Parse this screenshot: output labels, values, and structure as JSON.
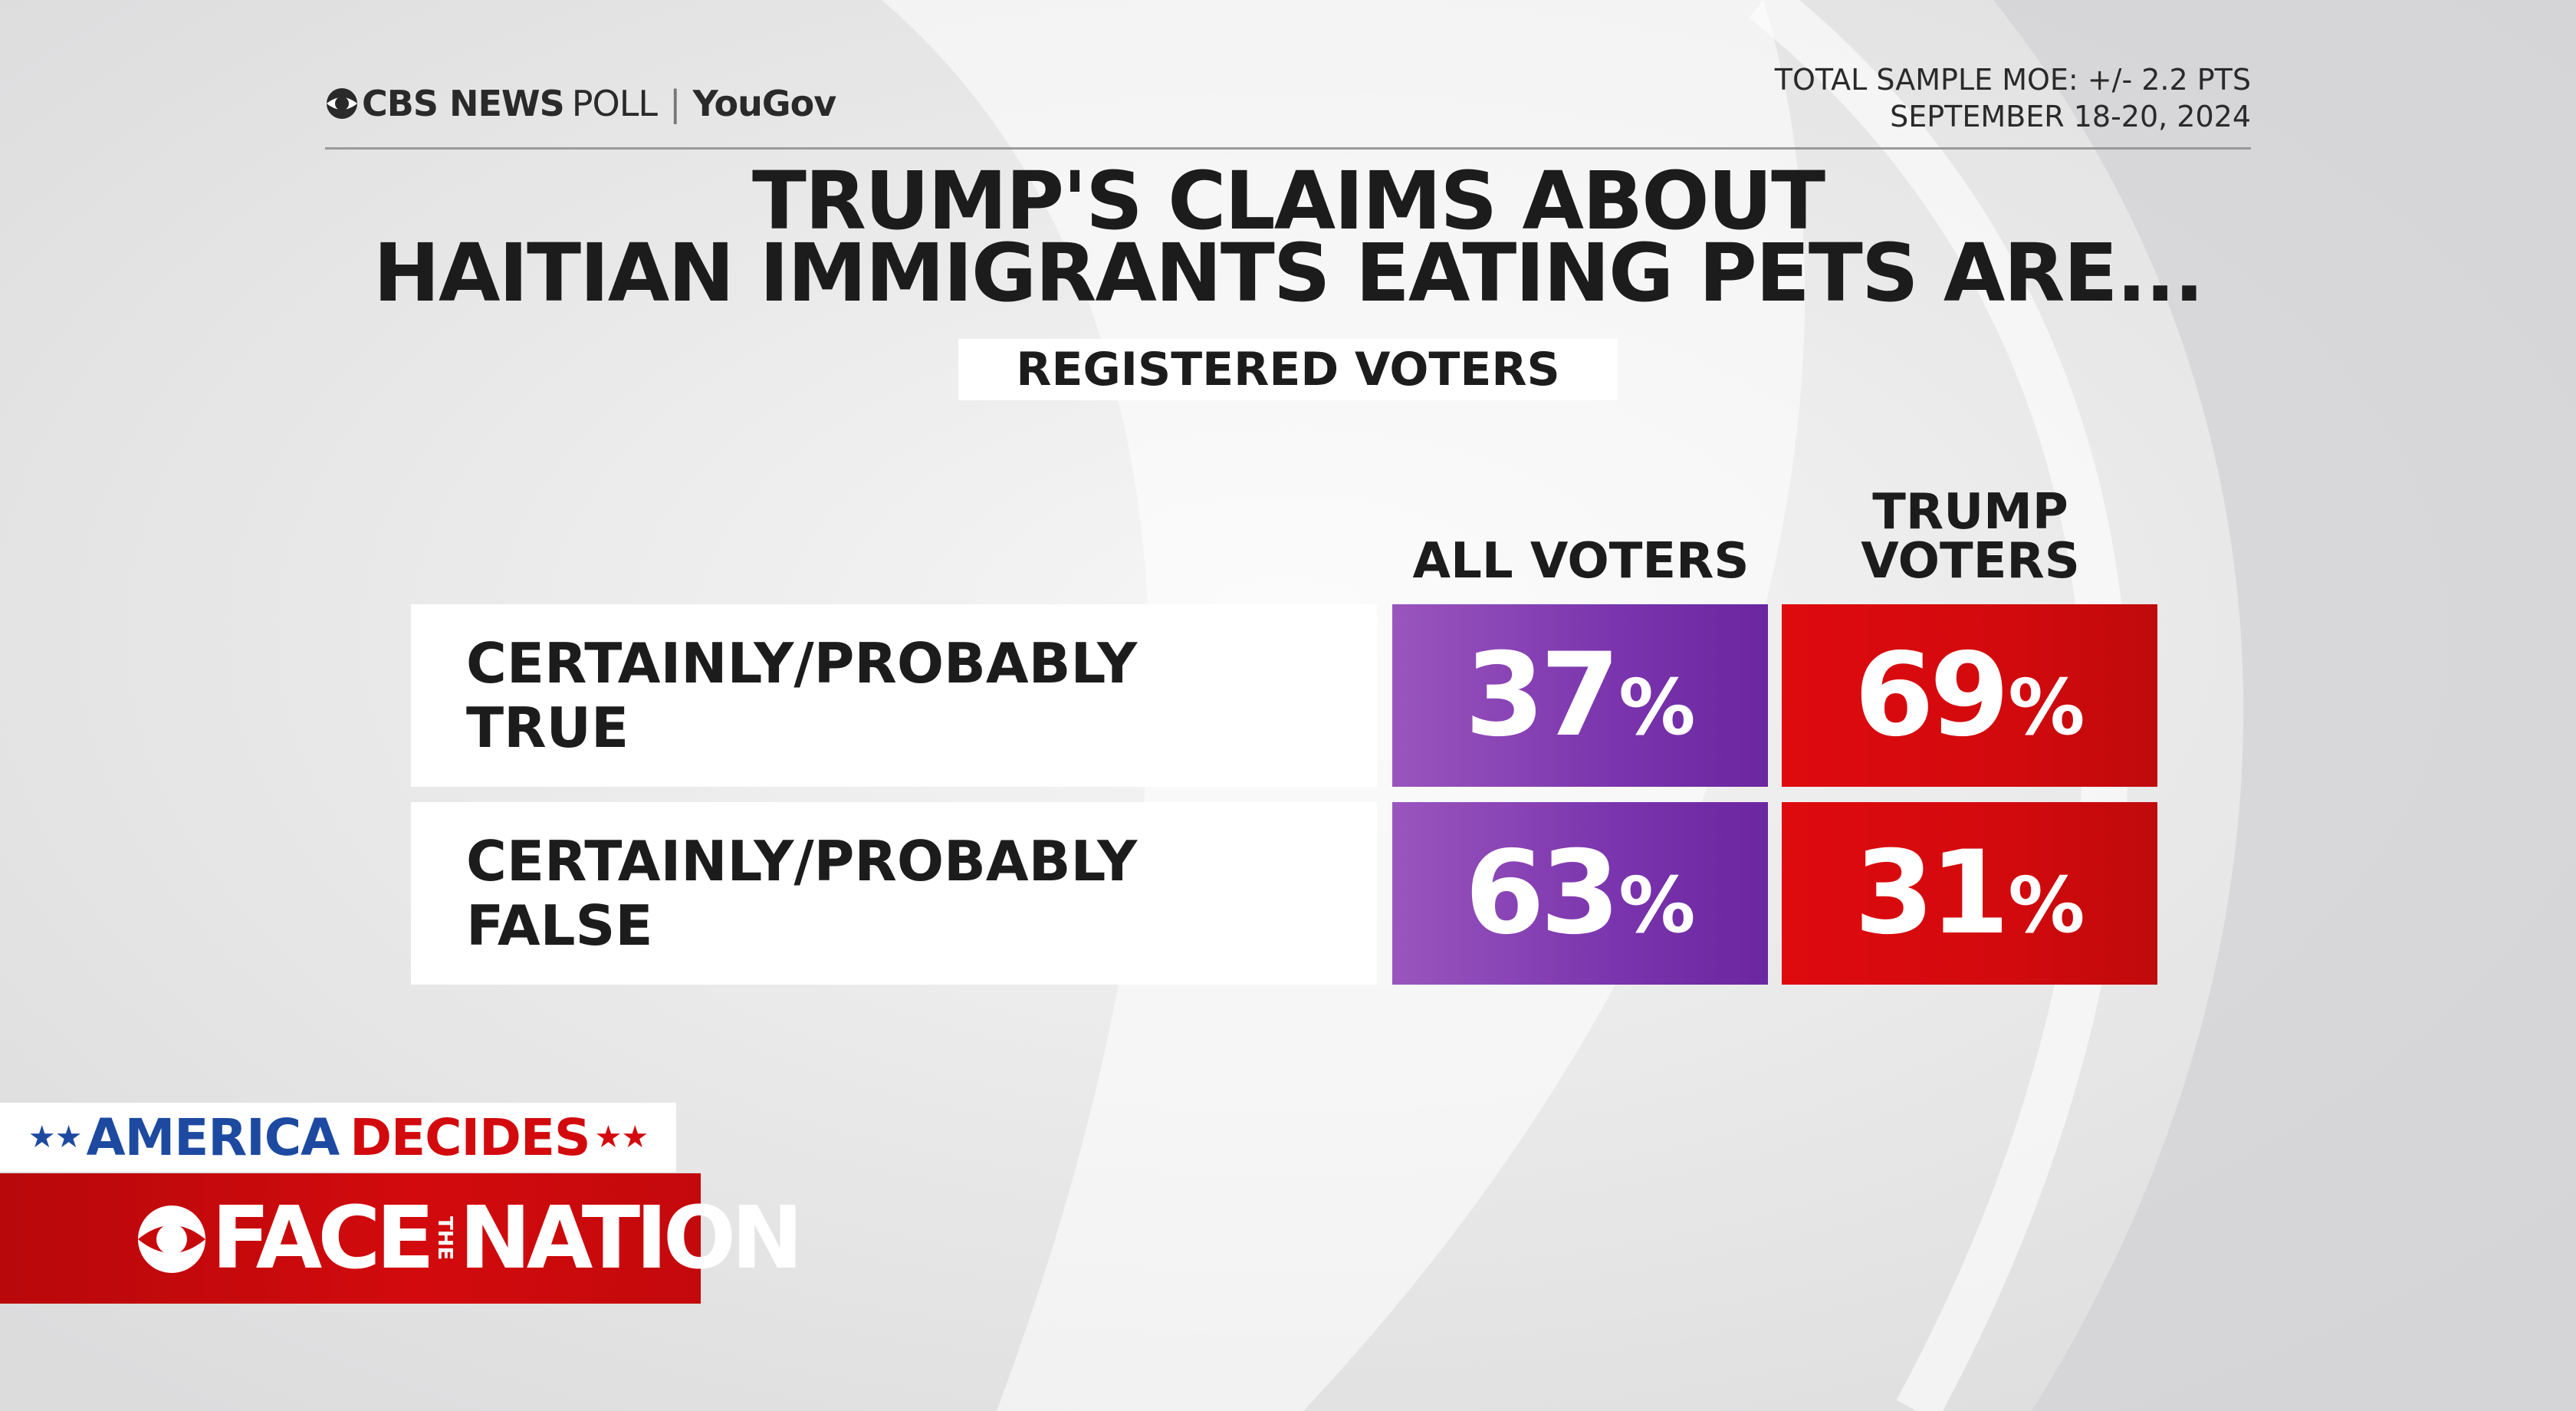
{
  "header": {
    "brand_news": "CBS NEWS",
    "brand_poll": "POLL",
    "brand_sep": "|",
    "brand_partner": "YouGov",
    "moe_line": "TOTAL SAMPLE MOE: +/- 2.2 PTS",
    "date_line": "SEPTEMBER 18-20, 2024"
  },
  "title_line1": "TRUMP'S CLAIMS ABOUT",
  "title_line2": "HAITIAN IMMIGRANTS EATING PETS ARE...",
  "subtitle": "REGISTERED VOTERS",
  "chart_data": {
    "type": "table",
    "title": "TRUMP'S CLAIMS ABOUT HAITIAN IMMIGRANTS EATING PETS ARE...",
    "subtitle": "REGISTERED VOTERS",
    "columns": [
      "ALL VOTERS",
      "TRUMP VOTERS"
    ],
    "rows": [
      {
        "label": "CERTAINLY/PROBABLY TRUE",
        "values": [
          37,
          69
        ]
      },
      {
        "label": "CERTAINLY/PROBABLY FALSE",
        "values": [
          63,
          31
        ]
      }
    ],
    "unit": "%"
  },
  "table": {
    "col1_head": "ALL VOTERS",
    "col2_head_line1": "TRUMP",
    "col2_head_line2": "VOTERS",
    "row1_label_line1": "CERTAINLY/PROBABLY",
    "row1_label_line2": "TRUE",
    "row2_label_line1": "CERTAINLY/PROBABLY",
    "row2_label_line2": "FALSE",
    "r1c1": "37",
    "r1c2": "69",
    "r2c1": "63",
    "r2c2": "31",
    "pct": "%"
  },
  "colors": {
    "all_voters": "#7a34ad",
    "trump_voters": "#d20a0d",
    "show_blue": "#1d4aa0"
  },
  "lower_third": {
    "america": "AMERICA",
    "decides": "DECIDES",
    "face": "FACE",
    "the": "THE",
    "nation": "NATION"
  }
}
